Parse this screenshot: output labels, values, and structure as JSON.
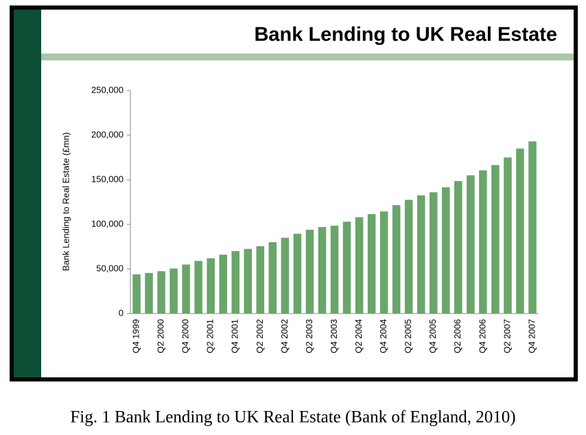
{
  "chart_data": {
    "type": "bar",
    "title": "Bank Lending to UK Real Estate",
    "y_label": "Bank Lending to Real Estate (£mn)",
    "caption": "Fig. 1 Bank Lending to UK Real Estate (Bank of England, 2010)",
    "categories": [
      "Q4 1999",
      null,
      "Q2 2000",
      null,
      "Q4 2000",
      null,
      "Q2 2001",
      null,
      "Q4 2001",
      null,
      "Q2 2002",
      null,
      "Q4 2002",
      null,
      "Q2 2003",
      null,
      "Q4 2003",
      null,
      "Q2 2004",
      null,
      "Q4 2004",
      null,
      "Q2 2005",
      null,
      "Q4 2005",
      null,
      "Q2 2006",
      null,
      "Q4 2006",
      null,
      "Q2 2007",
      null,
      "Q4 2007"
    ],
    "values": [
      44000,
      45500,
      47500,
      50500,
      55000,
      59000,
      62000,
      66000,
      70000,
      72500,
      75500,
      80000,
      85000,
      89500,
      94000,
      97000,
      98500,
      103000,
      108000,
      111500,
      114500,
      121500,
      127500,
      132500,
      136000,
      141500,
      148500,
      155000,
      160500,
      166500,
      175000,
      185000,
      193000
    ],
    "color": "#6aa56a",
    "ylim": [
      0,
      250000
    ],
    "yticks": [
      0,
      {
        "value": 50000,
        "label": "50,000"
      },
      {
        "value": 100000,
        "label": "100,000"
      },
      {
        "value": 150000,
        "label": "150,000"
      },
      {
        "value": 200000,
        "label": "200,000"
      },
      {
        "value": 250000,
        "label": "250,000"
      }
    ],
    "grid": false
  }
}
